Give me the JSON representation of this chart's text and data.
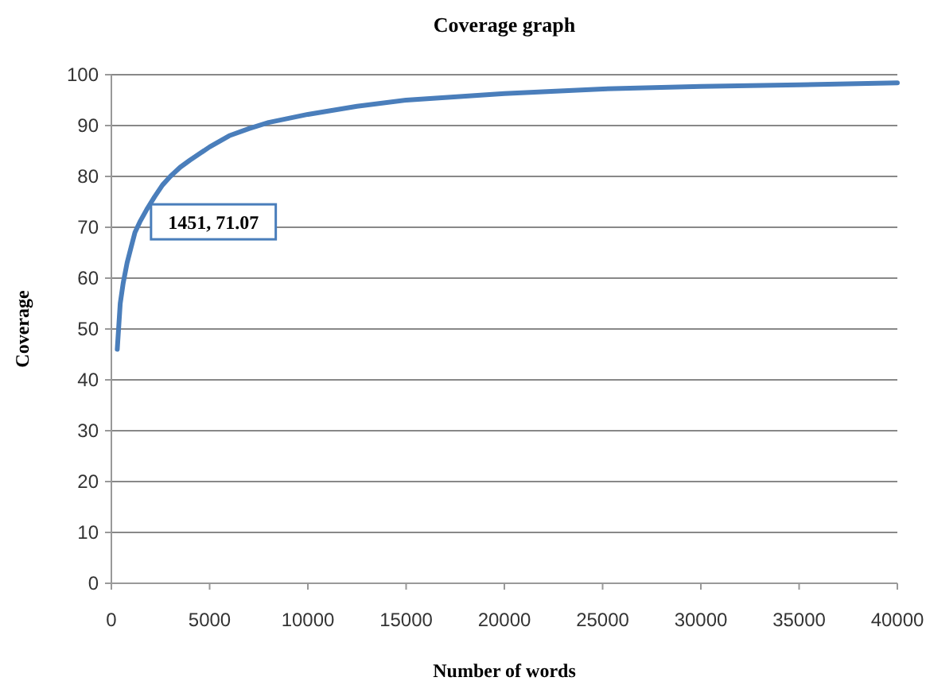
{
  "chart_data": {
    "type": "line",
    "title": "Coverage graph",
    "xlabel": "Number of words",
    "ylabel": "Coverage",
    "x": [
      300,
      450,
      600,
      800,
      1000,
      1200,
      1451,
      1800,
      2200,
      2600,
      3000,
      3500,
      4000,
      5000,
      6000,
      7000,
      8000,
      10000,
      12500,
      15000,
      20000,
      25000,
      30000,
      35000,
      40000
    ],
    "series": [
      {
        "color": "#4a7ebb",
        "values": [
          46,
          55,
          59,
          63,
          66,
          69,
          71.07,
          73.5,
          76,
          78.3,
          80,
          81.8,
          83.2,
          85.8,
          88,
          89.4,
          90.6,
          92.2,
          93.8,
          95,
          96.3,
          97.2,
          97.7,
          98,
          98.4
        ]
      }
    ],
    "xlim": [
      0,
      40000
    ],
    "xticks": [
      0,
      5000,
      10000,
      15000,
      20000,
      25000,
      30000,
      35000,
      40000
    ],
    "ylim": [
      0,
      100
    ],
    "yticks": [
      0,
      10,
      20,
      30,
      40,
      50,
      60,
      70,
      80,
      90,
      100
    ],
    "grid": "y",
    "marker": "none",
    "line_style": "solid",
    "annotations": [
      {
        "text": "1451, 71.07",
        "x": 1451,
        "y": 71.07
      }
    ]
  }
}
